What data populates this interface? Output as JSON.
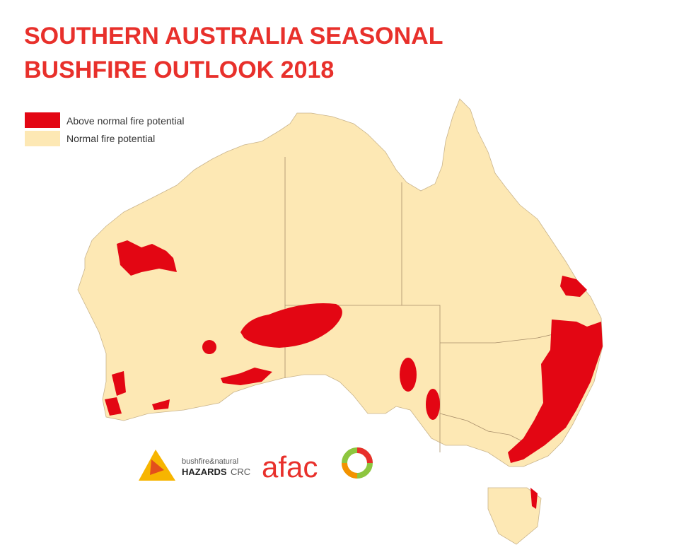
{
  "title": [
    "SOUTHERN AUSTRALIA SEASONAL",
    "BUSHFIRE OUTLOOK 2018"
  ],
  "legend": [
    {
      "label": "Above normal fire potential",
      "color": "#e30613"
    },
    {
      "label": "Normal fire potential",
      "color": "#fde8b4"
    }
  ],
  "logos": {
    "bnhcrc": {
      "line1": "bushfire&natural",
      "line2": "HAZARDS",
      "line3": "CRC"
    },
    "afac": "afac"
  }
}
